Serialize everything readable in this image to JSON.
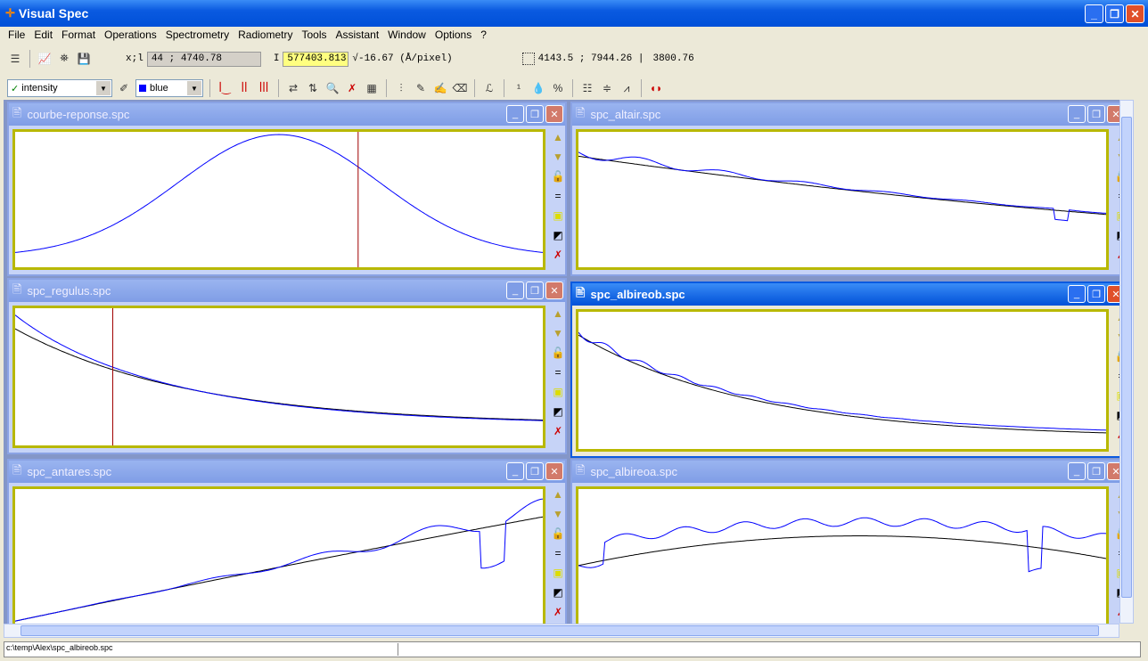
{
  "app": {
    "title": "Visual Spec",
    "icon": "visual-spec-icon"
  },
  "menu": [
    "File",
    "Edit",
    "Format",
    "Operations",
    "Spectrometry",
    "Radiometry",
    "Tools",
    "Assistant",
    "Window",
    "Options",
    "?"
  ],
  "toolbar1": {
    "xl_label": "x;l",
    "xl_value": "44 ; 4740.78",
    "i_label": "I",
    "i_value": "577403.813",
    "dispersion": "√-16.67 (Å/pixel)",
    "range": "4143.5 ; 7944.26 |",
    "span": "3800.76"
  },
  "toolbar2": {
    "mode_select": "intensity",
    "color_select": "blue",
    "color_hex": "#0000ff"
  },
  "children": [
    {
      "title": "courbe-reponse.spc",
      "active": false
    },
    {
      "title": "spc_altair.spc",
      "active": false
    },
    {
      "title": "spc_regulus.spc",
      "active": false
    },
    {
      "title": "spc_albireob.spc",
      "active": true
    },
    {
      "title": "spc_antares.spc",
      "active": false
    },
    {
      "title": "spc_albireoa.spc",
      "active": false
    }
  ],
  "status": {
    "path": "c:\\temp\\Alex\\spc_albireob.spc"
  },
  "colors": {
    "spectrum": "#0000ff",
    "fit": "#000000",
    "marker": "#a00000",
    "plot_border": "#b8b800"
  }
}
